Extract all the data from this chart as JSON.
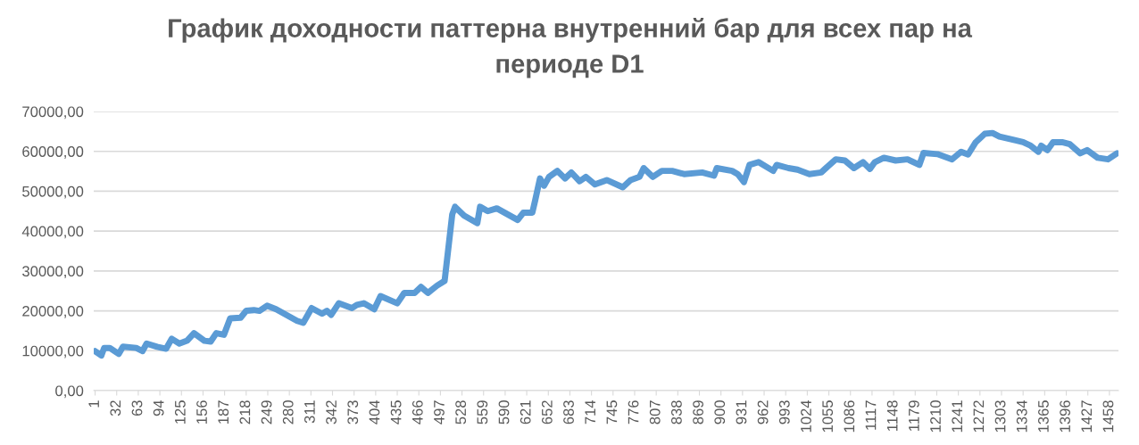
{
  "chart_data": {
    "type": "line",
    "title": "График доходности паттерна внутренний бар для всех пар на\nпериоде D1",
    "x": [
      1,
      10,
      14,
      22,
      35,
      41,
      60,
      69,
      75,
      90,
      103,
      111,
      122,
      133,
      143,
      158,
      167,
      175,
      186,
      195,
      210,
      218,
      229,
      237,
      248,
      261,
      291,
      300,
      312,
      327,
      334,
      340,
      351,
      370,
      377,
      387,
      402,
      411,
      435,
      445,
      460,
      469,
      479,
      492,
      503,
      514,
      518,
      531,
      550,
      554,
      565,
      578,
      608,
      616,
      629,
      633,
      640,
      646,
      653,
      665,
      676,
      685,
      697,
      706,
      719,
      736,
      759,
      770,
      783,
      789,
      802,
      815,
      830,
      847,
      873,
      890,
      894,
      916,
      924,
      933,
      941,
      954,
      975,
      980,
      997,
      1010,
      1027,
      1044,
      1052,
      1065,
      1078,
      1091,
      1104,
      1114,
      1121,
      1134,
      1151,
      1168,
      1185,
      1191,
      1211,
      1232,
      1245,
      1255,
      1266,
      1279,
      1290,
      1300,
      1322,
      1334,
      1345,
      1356,
      1360,
      1369,
      1377,
      1390,
      1401,
      1416,
      1426,
      1441,
      1456,
      1469
    ],
    "series": [
      {
        "color": "#5b9bd5",
        "values": [
          9900,
          8800,
          10700,
          10700,
          9200,
          11000,
          10700,
          9900,
          11800,
          11000,
          10500,
          13000,
          11800,
          12500,
          14400,
          12500,
          12300,
          14400,
          14000,
          18100,
          18300,
          20000,
          20200,
          20000,
          21300,
          20400,
          17500,
          17000,
          20700,
          19300,
          20000,
          19000,
          21900,
          20700,
          21500,
          21900,
          20400,
          23700,
          21900,
          24500,
          24500,
          26000,
          24500,
          26300,
          27500,
          44200,
          46100,
          43900,
          42000,
          46100,
          45000,
          45700,
          42800,
          44600,
          44600,
          47600,
          53200,
          51400,
          53600,
          55100,
          53200,
          54700,
          52500,
          53600,
          51700,
          52800,
          51000,
          52800,
          53600,
          55800,
          53600,
          55100,
          55100,
          54300,
          54700,
          53900,
          55800,
          55100,
          54300,
          52300,
          56600,
          57300,
          55100,
          56600,
          55800,
          55400,
          54300,
          54700,
          56000,
          58000,
          57700,
          55800,
          57300,
          55600,
          57300,
          58400,
          57700,
          58000,
          56600,
          59600,
          59300,
          58000,
          59900,
          59200,
          62300,
          64400,
          64600,
          63700,
          62800,
          62300,
          61400,
          59900,
          61400,
          60300,
          62300,
          62300,
          61800,
          59500,
          60300,
          58400,
          58000,
          59500
        ]
      }
    ],
    "xlim": [
      -1,
      1471
    ],
    "xticks": [
      1,
      32,
      63,
      94,
      125,
      156,
      187,
      218,
      249,
      280,
      311,
      342,
      373,
      404,
      435,
      466,
      497,
      528,
      559,
      590,
      621,
      652,
      683,
      714,
      745,
      776,
      807,
      838,
      869,
      900,
      931,
      962,
      993,
      1024,
      1055,
      1086,
      1117,
      1148,
      1179,
      1210,
      1241,
      1272,
      1303,
      1334,
      1365,
      1396,
      1427,
      1458
    ],
    "ylim": [
      0,
      70000
    ],
    "yticks": [
      {
        "value": 0,
        "label": "0,00"
      },
      {
        "value": 10000,
        "label": "10000,00"
      },
      {
        "value": 20000,
        "label": "20000,00"
      },
      {
        "value": 30000,
        "label": "30000,00"
      },
      {
        "value": 40000,
        "label": "40000,00"
      },
      {
        "value": 50000,
        "label": "50000,00"
      },
      {
        "value": 60000,
        "label": "60000,00"
      },
      {
        "value": 70000,
        "label": "70000,00"
      }
    ],
    "grid": "y",
    "marker": "none",
    "line_style": "solid"
  }
}
